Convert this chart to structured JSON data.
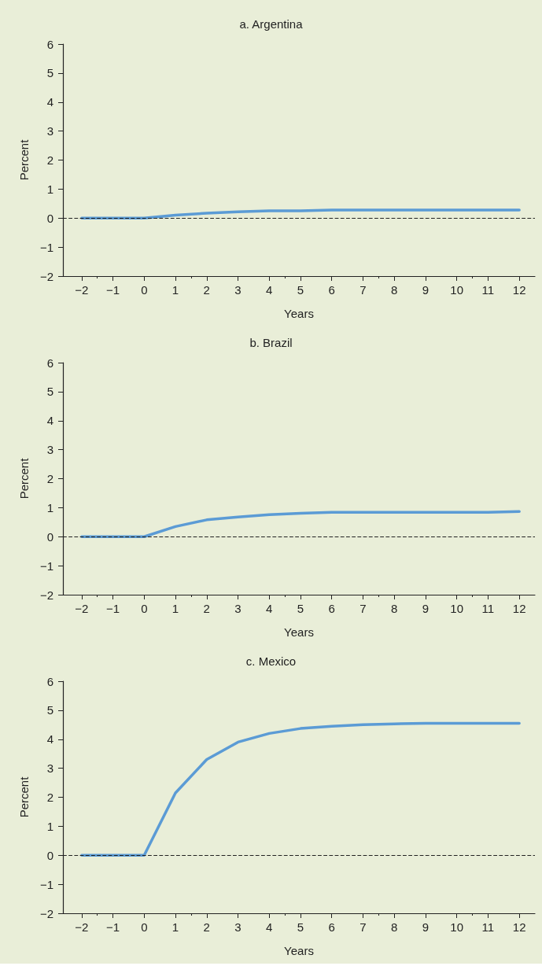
{
  "chart_data": [
    {
      "type": "line",
      "title": "a. Argentina",
      "xlabel": "Years",
      "ylabel": "Percent",
      "x": [
        -2,
        -1,
        0,
        1,
        2,
        3,
        4,
        5,
        6,
        7,
        8,
        9,
        10,
        11,
        12
      ],
      "series": [
        {
          "color": "#5b9bd5",
          "values": [
            0,
            0,
            0,
            0.1,
            0.17,
            0.22,
            0.25,
            0.25,
            0.28,
            0.28,
            0.28,
            0.28,
            0.28,
            0.28,
            0.28
          ]
        }
      ],
      "xlim": [
        -2.6,
        12.5
      ],
      "xticks": [
        -2,
        -1,
        0,
        1,
        2,
        3,
        4,
        5,
        6,
        7,
        8,
        9,
        10,
        11,
        12
      ],
      "ylim": [
        -2,
        6
      ],
      "yticks": [
        -2,
        -1,
        0,
        1,
        2,
        3,
        4,
        5,
        6
      ],
      "ref_lines": [
        {
          "axis": "y",
          "value": 0,
          "color": "#222222",
          "line_style": "dashed"
        }
      ],
      "marker": "none",
      "line_style": "solid"
    },
    {
      "type": "line",
      "title": "b. Brazil",
      "xlabel": "Years",
      "ylabel": "Percent",
      "x": [
        -2,
        -1,
        0,
        1,
        2,
        3,
        4,
        5,
        6,
        7,
        8,
        9,
        10,
        11,
        12
      ],
      "series": [
        {
          "color": "#5b9bd5",
          "values": [
            0,
            0,
            0,
            0.35,
            0.58,
            0.68,
            0.76,
            0.81,
            0.84,
            0.84,
            0.84,
            0.84,
            0.84,
            0.84,
            0.87
          ]
        }
      ],
      "xlim": [
        -2.6,
        12.5
      ],
      "xticks": [
        -2,
        -1,
        0,
        1,
        2,
        3,
        4,
        5,
        6,
        7,
        8,
        9,
        10,
        11,
        12
      ],
      "ylim": [
        -2,
        6
      ],
      "yticks": [
        -2,
        -1,
        0,
        1,
        2,
        3,
        4,
        5,
        6
      ],
      "ref_lines": [
        {
          "axis": "y",
          "value": 0,
          "color": "#222222",
          "line_style": "dashed"
        }
      ],
      "marker": "none",
      "line_style": "solid"
    },
    {
      "type": "line",
      "title": "c. Mexico",
      "xlabel": "Years",
      "ylabel": "Percent",
      "x": [
        -2,
        -1,
        0,
        1,
        2,
        3,
        4,
        5,
        6,
        7,
        8,
        9,
        10,
        11,
        12
      ],
      "series": [
        {
          "color": "#5b9bd5",
          "values": [
            0,
            0,
            0,
            2.15,
            3.3,
            3.9,
            4.2,
            4.37,
            4.45,
            4.5,
            4.53,
            4.55,
            4.55,
            4.55,
            4.55
          ]
        }
      ],
      "xlim": [
        -2.6,
        12.5
      ],
      "xticks": [
        -2,
        -1,
        0,
        1,
        2,
        3,
        4,
        5,
        6,
        7,
        8,
        9,
        10,
        11,
        12
      ],
      "ylim": [
        -2,
        6
      ],
      "yticks": [
        -2,
        -1,
        0,
        1,
        2,
        3,
        4,
        5,
        6
      ],
      "ref_lines": [
        {
          "axis": "y",
          "value": 0,
          "color": "#222222",
          "line_style": "dashed"
        }
      ],
      "marker": "none",
      "line_style": "solid"
    }
  ]
}
